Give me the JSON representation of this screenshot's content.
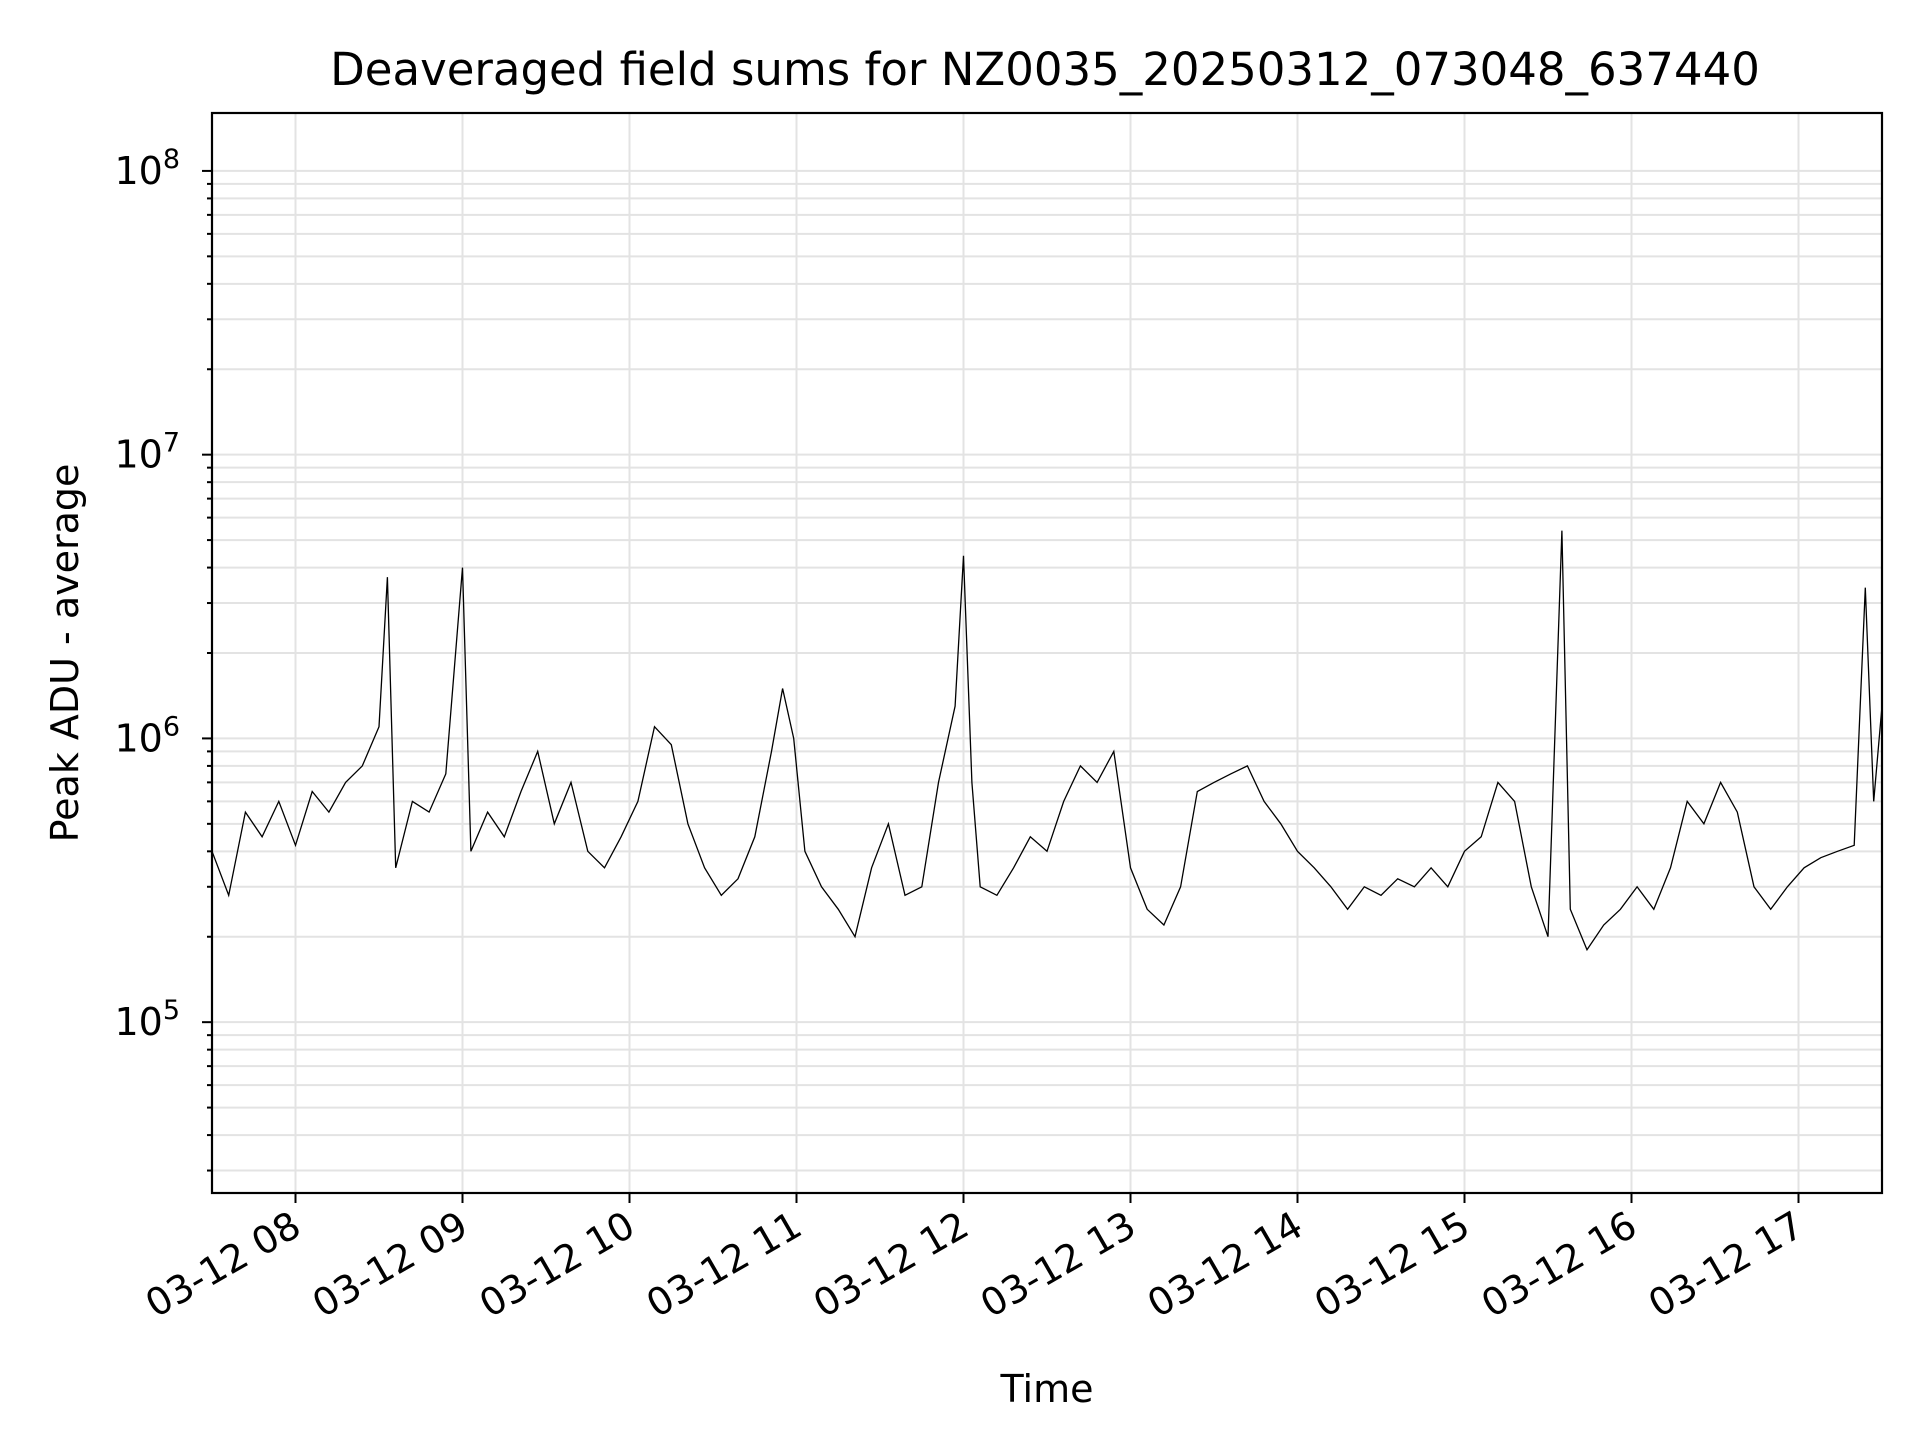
{
  "chart_data": {
    "type": "line",
    "title": "Deaveraged field sums for NZ0035_20250312_073048_637440",
    "xlabel": "Time",
    "ylabel": "Peak ADU - average",
    "yscale": "log",
    "ylim": [
      25000,
      160000000
    ],
    "xlim": [
      "2025-03-12 07:30",
      "2025-03-12 17:30"
    ],
    "grid": true,
    "x_ticks": [
      "03-12 08",
      "03-12 09",
      "03-12 10",
      "03-12 11",
      "03-12 12",
      "03-12 13",
      "03-12 14",
      "03-12 15",
      "03-12 16",
      "03-12 17"
    ],
    "y_ticks": [
      {
        "base": "10",
        "exp": "5",
        "value": 100000
      },
      {
        "base": "10",
        "exp": "6",
        "value": 1000000
      },
      {
        "base": "10",
        "exp": "7",
        "value": 10000000
      },
      {
        "base": "10",
        "exp": "8",
        "value": 100000000
      }
    ],
    "series": [
      {
        "color": "#000000",
        "points": [
          [
            "2025-03-12 07:30",
            400000
          ],
          [
            "2025-03-12 07:36",
            280000
          ],
          [
            "2025-03-12 07:42",
            550000
          ],
          [
            "2025-03-12 07:48",
            450000
          ],
          [
            "2025-03-12 07:54",
            600000
          ],
          [
            "2025-03-12 08:00",
            420000
          ],
          [
            "2025-03-12 08:06",
            650000
          ],
          [
            "2025-03-12 08:12",
            550000
          ],
          [
            "2025-03-12 08:18",
            700000
          ],
          [
            "2025-03-12 08:24",
            800000
          ],
          [
            "2025-03-12 08:30",
            1100000
          ],
          [
            "2025-03-12 08:33",
            3700000
          ],
          [
            "2025-03-12 08:36",
            350000
          ],
          [
            "2025-03-12 08:42",
            600000
          ],
          [
            "2025-03-12 08:48",
            550000
          ],
          [
            "2025-03-12 08:54",
            750000
          ],
          [
            "2025-03-12 09:00",
            4000000
          ],
          [
            "2025-03-12 09:03",
            400000
          ],
          [
            "2025-03-12 09:09",
            550000
          ],
          [
            "2025-03-12 09:15",
            450000
          ],
          [
            "2025-03-12 09:21",
            650000
          ],
          [
            "2025-03-12 09:27",
            900000
          ],
          [
            "2025-03-12 09:33",
            500000
          ],
          [
            "2025-03-12 09:39",
            700000
          ],
          [
            "2025-03-12 09:45",
            400000
          ],
          [
            "2025-03-12 09:51",
            350000
          ],
          [
            "2025-03-12 09:57",
            450000
          ],
          [
            "2025-03-12 10:03",
            600000
          ],
          [
            "2025-03-12 10:09",
            1100000
          ],
          [
            "2025-03-12 10:15",
            950000
          ],
          [
            "2025-03-12 10:21",
            500000
          ],
          [
            "2025-03-12 10:27",
            350000
          ],
          [
            "2025-03-12 10:33",
            280000
          ],
          [
            "2025-03-12 10:39",
            320000
          ],
          [
            "2025-03-12 10:45",
            450000
          ],
          [
            "2025-03-12 10:51",
            900000
          ],
          [
            "2025-03-12 10:55",
            1500000
          ],
          [
            "2025-03-12 10:59",
            1000000
          ],
          [
            "2025-03-12 11:03",
            400000
          ],
          [
            "2025-03-12 11:09",
            300000
          ],
          [
            "2025-03-12 11:15",
            250000
          ],
          [
            "2025-03-12 11:21",
            200000
          ],
          [
            "2025-03-12 11:27",
            350000
          ],
          [
            "2025-03-12 11:33",
            500000
          ],
          [
            "2025-03-12 11:39",
            280000
          ],
          [
            "2025-03-12 11:45",
            300000
          ],
          [
            "2025-03-12 11:51",
            700000
          ],
          [
            "2025-03-12 11:57",
            1300000
          ],
          [
            "2025-03-12 12:00",
            4400000
          ],
          [
            "2025-03-12 12:03",
            700000
          ],
          [
            "2025-03-12 12:06",
            300000
          ],
          [
            "2025-03-12 12:12",
            280000
          ],
          [
            "2025-03-12 12:18",
            350000
          ],
          [
            "2025-03-12 12:24",
            450000
          ],
          [
            "2025-03-12 12:30",
            400000
          ],
          [
            "2025-03-12 12:36",
            600000
          ],
          [
            "2025-03-12 12:42",
            800000
          ],
          [
            "2025-03-12 12:48",
            700000
          ],
          [
            "2025-03-12 12:54",
            900000
          ],
          [
            "2025-03-12 13:00",
            350000
          ],
          [
            "2025-03-12 13:06",
            250000
          ],
          [
            "2025-03-12 13:12",
            220000
          ],
          [
            "2025-03-12 13:18",
            300000
          ],
          [
            "2025-03-12 13:24",
            650000
          ],
          [
            "2025-03-12 13:30",
            700000
          ],
          [
            "2025-03-12 13:36",
            750000
          ],
          [
            "2025-03-12 13:42",
            800000
          ],
          [
            "2025-03-12 13:48",
            600000
          ],
          [
            "2025-03-12 13:54",
            500000
          ],
          [
            "2025-03-12 14:00",
            400000
          ],
          [
            "2025-03-12 14:06",
            350000
          ],
          [
            "2025-03-12 14:12",
            300000
          ],
          [
            "2025-03-12 14:18",
            250000
          ],
          [
            "2025-03-12 14:24",
            300000
          ],
          [
            "2025-03-12 14:30",
            280000
          ],
          [
            "2025-03-12 14:36",
            320000
          ],
          [
            "2025-03-12 14:42",
            300000
          ],
          [
            "2025-03-12 14:48",
            350000
          ],
          [
            "2025-03-12 14:54",
            300000
          ],
          [
            "2025-03-12 15:00",
            400000
          ],
          [
            "2025-03-12 15:06",
            450000
          ],
          [
            "2025-03-12 15:12",
            700000
          ],
          [
            "2025-03-12 15:18",
            600000
          ],
          [
            "2025-03-12 15:24",
            300000
          ],
          [
            "2025-03-12 15:30",
            200000
          ],
          [
            "2025-03-12 15:35",
            5400000
          ],
          [
            "2025-03-12 15:38",
            250000
          ],
          [
            "2025-03-12 15:44",
            180000
          ],
          [
            "2025-03-12 15:50",
            220000
          ],
          [
            "2025-03-12 15:56",
            250000
          ],
          [
            "2025-03-12 16:02",
            300000
          ],
          [
            "2025-03-12 16:08",
            250000
          ],
          [
            "2025-03-12 16:14",
            350000
          ],
          [
            "2025-03-12 16:20",
            600000
          ],
          [
            "2025-03-12 16:26",
            500000
          ],
          [
            "2025-03-12 16:32",
            700000
          ],
          [
            "2025-03-12 16:38",
            550000
          ],
          [
            "2025-03-12 16:44",
            300000
          ],
          [
            "2025-03-12 16:50",
            250000
          ],
          [
            "2025-03-12 16:56",
            300000
          ],
          [
            "2025-03-12 17:02",
            350000
          ],
          [
            "2025-03-12 17:08",
            380000
          ],
          [
            "2025-03-12 17:14",
            400000
          ],
          [
            "2025-03-12 17:20",
            420000
          ],
          [
            "2025-03-12 17:24",
            3400000
          ],
          [
            "2025-03-12 17:27",
            600000
          ],
          [
            "2025-03-12 17:30",
            1300000
          ]
        ]
      }
    ]
  }
}
